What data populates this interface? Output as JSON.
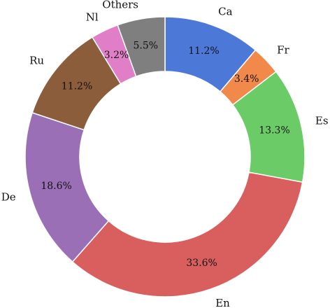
{
  "chart_data": {
    "type": "pie",
    "donut": true,
    "start_angle_deg": 90,
    "direction": "clockwise",
    "categories": [
      "Ca",
      "Fr",
      "Es",
      "En",
      "De",
      "Ru",
      "Nl",
      "Others"
    ],
    "values": [
      11.2,
      3.4,
      13.3,
      33.6,
      18.6,
      11.2,
      3.2,
      5.5
    ],
    "value_labels": [
      "11.2%",
      "3.4%",
      "13.3%",
      "33.6%",
      "18.6%",
      "11.2%",
      "3.2%",
      "5.5%"
    ],
    "colors": [
      "#4c78d8",
      "#f0894a",
      "#6bcb66",
      "#d95f5f",
      "#9b6fb5",
      "#8c5d3b",
      "#e07fc7",
      "#7f7f7f"
    ],
    "title": "",
    "legend": "none"
  }
}
